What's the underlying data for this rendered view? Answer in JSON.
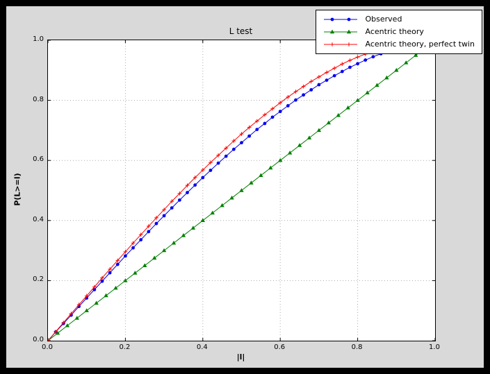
{
  "window": {
    "frame_color": "#000000",
    "figure_background": "#d9d9d9",
    "axes_background": "#ffffff"
  },
  "chart_data": {
    "type": "line",
    "title": "L test",
    "xlabel": "|l|",
    "ylabel": "P(L>=l)",
    "xlim": [
      0.0,
      1.0
    ],
    "ylim": [
      0.0,
      1.0
    ],
    "x_ticks": [
      "0.0",
      "0.2",
      "0.4",
      "0.6",
      "0.8",
      "1.0"
    ],
    "y_ticks": [
      "0.0",
      "0.2",
      "0.4",
      "0.6",
      "0.8",
      "1.0"
    ],
    "grid": "dotted",
    "grid_color": "#aaaaaa",
    "legend": {
      "position": "upper right"
    },
    "series": [
      {
        "name": "Observed",
        "color": "#0000ee",
        "marker": "circle",
        "x": [
          0,
          0.02,
          0.04,
          0.06,
          0.08,
          0.1,
          0.12,
          0.14,
          0.16,
          0.18,
          0.2,
          0.22,
          0.24,
          0.26,
          0.28,
          0.3,
          0.32,
          0.34,
          0.36,
          0.38,
          0.4,
          0.42,
          0.44,
          0.46,
          0.48,
          0.5,
          0.52,
          0.54,
          0.56,
          0.58,
          0.6,
          0.62,
          0.64,
          0.66,
          0.68,
          0.7,
          0.72,
          0.74,
          0.76,
          0.78,
          0.8,
          0.82,
          0.84,
          0.86
        ],
        "y": [
          0,
          0.029,
          0.057,
          0.085,
          0.114,
          0.142,
          0.17,
          0.198,
          0.226,
          0.254,
          0.282,
          0.309,
          0.336,
          0.363,
          0.39,
          0.416,
          0.442,
          0.468,
          0.493,
          0.518,
          0.543,
          0.567,
          0.591,
          0.614,
          0.637,
          0.659,
          0.681,
          0.703,
          0.723,
          0.744,
          0.763,
          0.782,
          0.801,
          0.818,
          0.835,
          0.852,
          0.867,
          0.882,
          0.896,
          0.91,
          0.922,
          0.934,
          0.945,
          0.955
        ]
      },
      {
        "name": "Acentric theory",
        "color": "#008000",
        "marker": "triangle",
        "x": [
          0,
          0.025,
          0.05,
          0.075,
          0.1,
          0.125,
          0.15,
          0.175,
          0.2,
          0.225,
          0.25,
          0.275,
          0.3,
          0.325,
          0.35,
          0.375,
          0.4,
          0.425,
          0.45,
          0.475,
          0.5,
          0.525,
          0.55,
          0.575,
          0.6,
          0.625,
          0.65,
          0.675,
          0.7,
          0.725,
          0.75,
          0.775,
          0.8,
          0.825,
          0.85,
          0.875,
          0.9,
          0.925,
          0.95,
          0.975,
          1.0
        ],
        "y": [
          0,
          0.025,
          0.05,
          0.075,
          0.1,
          0.125,
          0.15,
          0.175,
          0.2,
          0.225,
          0.25,
          0.275,
          0.3,
          0.325,
          0.35,
          0.375,
          0.4,
          0.425,
          0.45,
          0.475,
          0.5,
          0.525,
          0.55,
          0.575,
          0.6,
          0.625,
          0.65,
          0.675,
          0.7,
          0.725,
          0.75,
          0.775,
          0.8,
          0.825,
          0.85,
          0.875,
          0.9,
          0.925,
          0.95,
          0.975,
          1.0
        ]
      },
      {
        "name": "Acentric theory, perfect twin",
        "color": "#ff0000",
        "marker": "plus",
        "x": [
          0,
          0.02,
          0.04,
          0.06,
          0.08,
          0.1,
          0.12,
          0.14,
          0.16,
          0.18,
          0.2,
          0.22,
          0.24,
          0.26,
          0.28,
          0.3,
          0.32,
          0.34,
          0.36,
          0.38,
          0.4,
          0.42,
          0.44,
          0.46,
          0.48,
          0.5,
          0.52,
          0.54,
          0.56,
          0.58,
          0.6,
          0.62,
          0.64,
          0.66,
          0.68,
          0.7,
          0.72,
          0.74,
          0.76,
          0.78,
          0.8,
          0.82,
          0.84,
          0.86,
          0.88,
          0.9,
          0.92,
          0.94,
          0.96,
          0.98,
          1.0
        ],
        "y": [
          0,
          0.03,
          0.06,
          0.09,
          0.12,
          0.149,
          0.179,
          0.209,
          0.238,
          0.267,
          0.296,
          0.325,
          0.353,
          0.381,
          0.409,
          0.436,
          0.464,
          0.49,
          0.517,
          0.543,
          0.568,
          0.593,
          0.617,
          0.641,
          0.665,
          0.688,
          0.71,
          0.731,
          0.752,
          0.772,
          0.792,
          0.811,
          0.829,
          0.846,
          0.863,
          0.878,
          0.893,
          0.907,
          0.921,
          0.933,
          0.944,
          0.954,
          0.964,
          0.972,
          0.979,
          0.985,
          0.991,
          0.995,
          0.998,
          0.999,
          1.0
        ]
      }
    ]
  }
}
